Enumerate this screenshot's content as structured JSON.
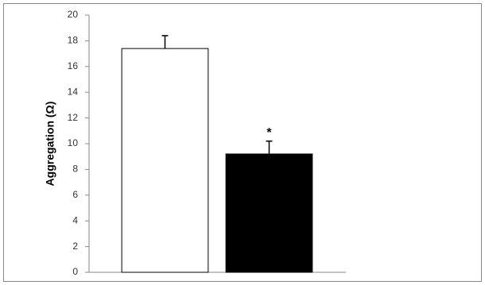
{
  "chart_data": {
    "type": "bar",
    "y_label": "Aggregation (Ω)",
    "categories": [
      null,
      null
    ],
    "values": [
      17.4,
      9.2
    ],
    "errors": [
      1.0,
      1.0
    ],
    "colors": [
      "#ffffff",
      "#000000"
    ],
    "annotations": [
      "*"
    ],
    "ylim": [
      0,
      20
    ],
    "yticks": [
      0,
      2,
      4,
      6,
      8,
      10,
      12,
      14,
      16,
      18,
      20
    ],
    "grid": false
  }
}
